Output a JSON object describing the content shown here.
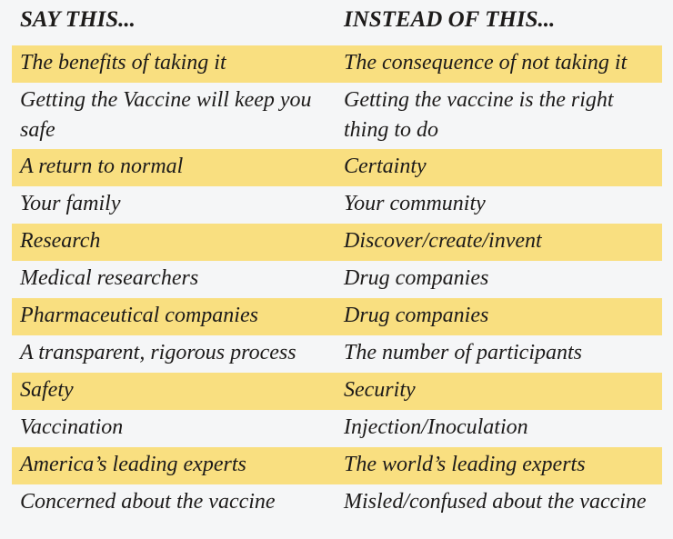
{
  "headers": {
    "left": "SAY THIS...",
    "right": "INSTEAD OF THIS..."
  },
  "highlight_color": "#f9df80",
  "rows": [
    {
      "say": "The benefits of taking it",
      "instead": "The consequence of not taking it",
      "highlighted": true
    },
    {
      "say": "Getting the Vaccine will keep you safe",
      "instead": "Getting the vaccine is the right thing to do",
      "highlighted": false
    },
    {
      "say": "A return to normal",
      "instead": "Certainty",
      "highlighted": true
    },
    {
      "say": "Your family",
      "instead": "Your community",
      "highlighted": false
    },
    {
      "say": "Research",
      "instead": "Discover/create/invent",
      "highlighted": true
    },
    {
      "say": "Medical researchers",
      "instead": "Drug companies",
      "highlighted": false
    },
    {
      "say": "Pharmaceutical companies",
      "instead": "Drug companies",
      "highlighted": true
    },
    {
      "say": "A transparent, rigorous process",
      "instead": "The number of participants",
      "highlighted": false
    },
    {
      "say": "Safety",
      "instead": "Security",
      "highlighted": true
    },
    {
      "say": "Vaccination",
      "instead": "Injection/Inoculation",
      "highlighted": false
    },
    {
      "say": "America’s leading experts",
      "instead": "The world’s leading experts",
      "highlighted": true
    },
    {
      "say": "Concerned about the vaccine",
      "instead": "Misled/confused about the vaccine",
      "highlighted": false
    }
  ]
}
